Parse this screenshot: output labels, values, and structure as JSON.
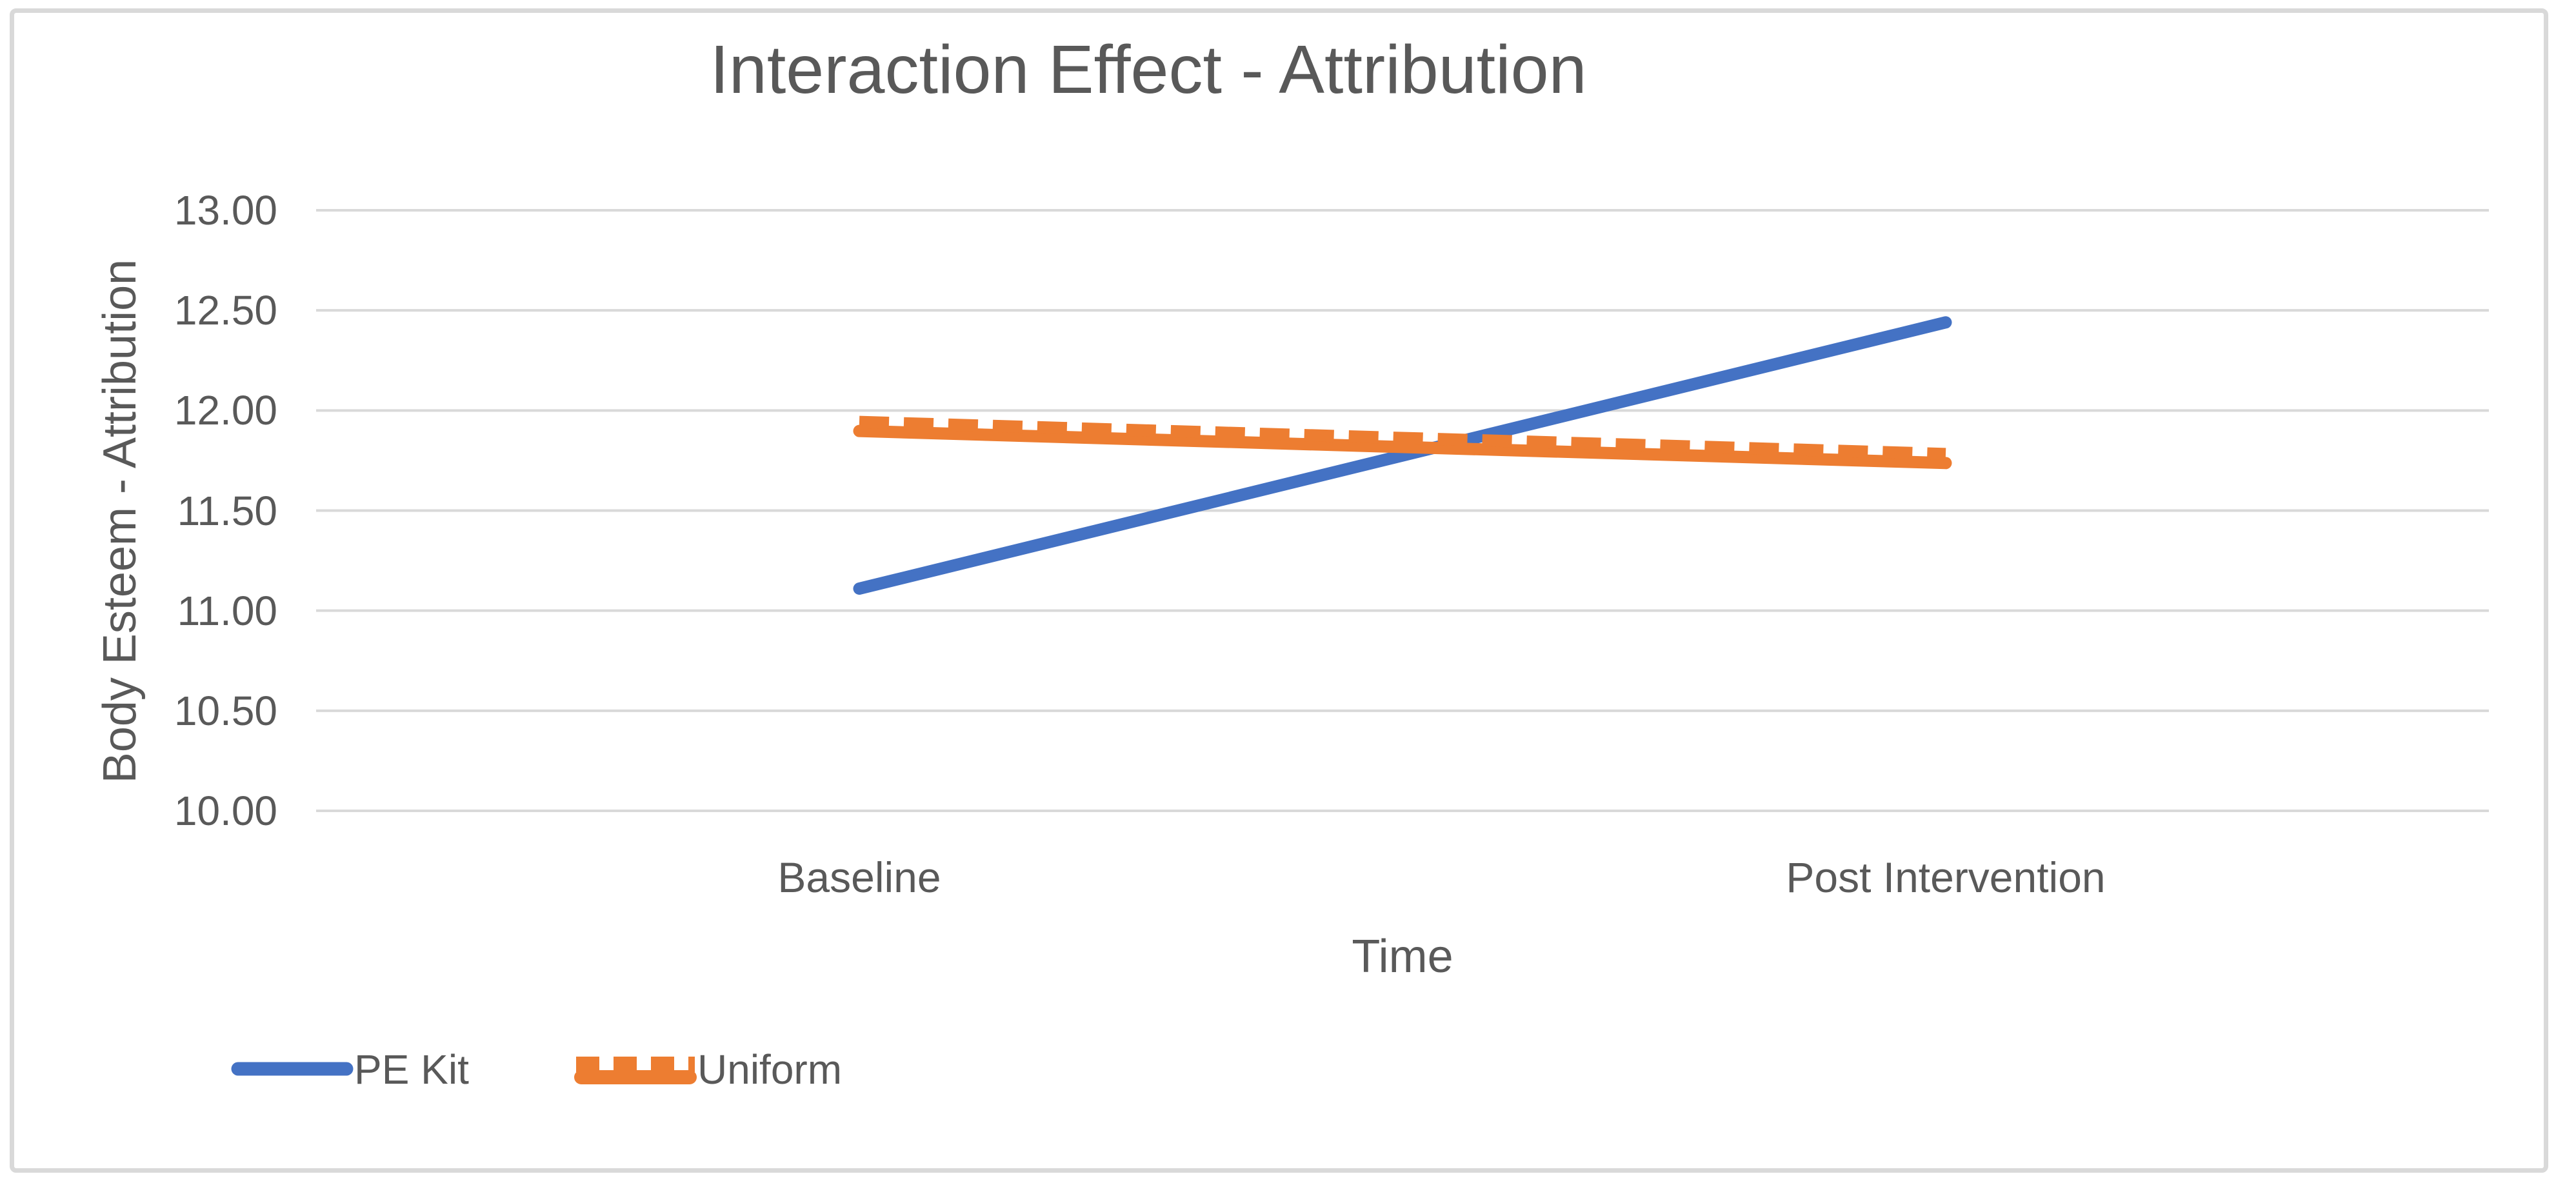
{
  "title": "Interaction Effect - Attribution",
  "chart_data": {
    "type": "line",
    "title": "Interaction Effect - Attribution",
    "categories": [
      "Baseline",
      "Post Intervention"
    ],
    "series": [
      {
        "name": "PE Kit",
        "values": [
          11.11,
          12.44
        ],
        "color": "#4472C4",
        "style": "solid"
      },
      {
        "name": "Uniform",
        "values": [
          11.92,
          11.76
        ],
        "color": "#ED7D31",
        "style": "dashed"
      }
    ],
    "xlabel": "Time",
    "ylabel": "Body Esteem - Attribution",
    "ylim": [
      10.0,
      13.0
    ],
    "ytick_step": 0.5,
    "ytick_labels": [
      "13.00",
      "12.50",
      "12.00",
      "11.50",
      "11.00",
      "10.50",
      "10.00"
    ],
    "grid": "horizontal-only",
    "legend_position": "bottom-left"
  },
  "colors": {
    "background": "#FFFFFF",
    "border": "#D9D9D9",
    "gridline": "#D9D9D9",
    "text": "#595959",
    "pe_kit": "#4472C4",
    "uniform": "#ED7D31"
  }
}
